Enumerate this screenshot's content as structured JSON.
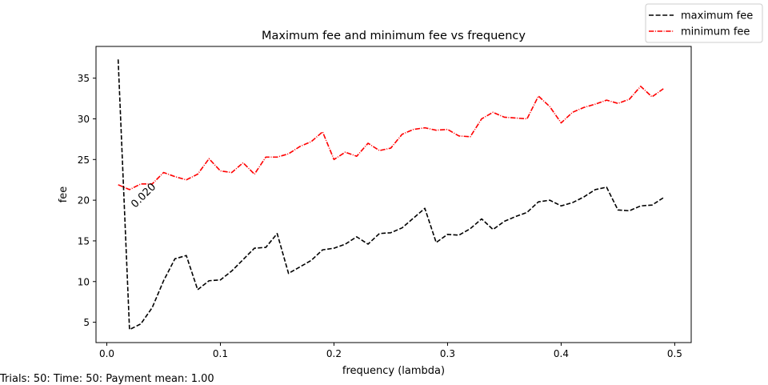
{
  "chart_data": {
    "type": "line",
    "title": "Maximum fee and minimum fee vs frequency",
    "xlabel": "frequency (lambda)",
    "ylabel": "fee",
    "xlim": [
      -0.0095,
      0.5145
    ],
    "ylim": [
      2.5,
      38.9
    ],
    "xticks": [
      0.0,
      0.1,
      0.2,
      0.3,
      0.4,
      0.5
    ],
    "xtick_labels": [
      "0.0",
      "0.1",
      "0.2",
      "0.3",
      "0.4",
      "0.5"
    ],
    "yticks": [
      5,
      10,
      15,
      20,
      25,
      30,
      35
    ],
    "ytick_labels": [
      "5",
      "10",
      "15",
      "20",
      "25",
      "30",
      "35"
    ],
    "grid": false,
    "legend": "top-right",
    "x": [
      0.01,
      0.02,
      0.03,
      0.04,
      0.05,
      0.06,
      0.07,
      0.08,
      0.09,
      0.1,
      0.11,
      0.12,
      0.13,
      0.14,
      0.15,
      0.16,
      0.17,
      0.18,
      0.19,
      0.2,
      0.21,
      0.22,
      0.23,
      0.24,
      0.25,
      0.26,
      0.27,
      0.28,
      0.29,
      0.3,
      0.31,
      0.32,
      0.33,
      0.34,
      0.35,
      0.36,
      0.37,
      0.38,
      0.39,
      0.4,
      0.41,
      0.42,
      0.43,
      0.44,
      0.45,
      0.46,
      0.47,
      0.48,
      0.49
    ],
    "series": [
      {
        "name": "maximum fee",
        "color": "#000000",
        "dash": "dashed",
        "values": [
          37.3,
          4.1,
          4.8,
          6.8,
          10.1,
          12.8,
          13.2,
          9.0,
          10.1,
          10.2,
          11.3,
          12.7,
          14.1,
          14.2,
          15.9,
          11.0,
          11.8,
          12.6,
          13.9,
          14.1,
          14.6,
          15.5,
          14.6,
          15.9,
          16.0,
          16.6,
          17.8,
          19.0,
          14.8,
          15.8,
          15.7,
          16.5,
          17.7,
          16.4,
          17.4,
          18.0,
          18.5,
          19.8,
          20.0,
          19.3,
          19.7,
          20.4,
          21.3,
          21.6,
          18.8,
          18.7,
          19.3,
          19.4,
          20.3
        ]
      },
      {
        "name": "minimum fee",
        "color": "#ff0000",
        "dash": "dashdot",
        "values": [
          21.9,
          21.3,
          22.0,
          22.0,
          23.4,
          22.9,
          22.5,
          23.2,
          25.1,
          23.6,
          23.4,
          24.6,
          23.2,
          25.3,
          25.3,
          25.7,
          26.6,
          27.2,
          28.4,
          25.0,
          25.9,
          25.4,
          27.0,
          26.1,
          26.4,
          28.1,
          28.7,
          28.9,
          28.6,
          28.7,
          27.9,
          27.8,
          30.0,
          30.8,
          30.2,
          30.1,
          30.0,
          32.8,
          31.5,
          29.5,
          30.8,
          31.4,
          31.8,
          32.3,
          31.9,
          32.4,
          34.0,
          32.7,
          33.7
        ]
      }
    ],
    "annotations": [
      {
        "text": "0.020",
        "x": 0.025,
        "y": 19.0,
        "rotation": -45
      }
    ]
  },
  "footnote": "Trials: 50: Time: 50: Payment mean: 1.00"
}
